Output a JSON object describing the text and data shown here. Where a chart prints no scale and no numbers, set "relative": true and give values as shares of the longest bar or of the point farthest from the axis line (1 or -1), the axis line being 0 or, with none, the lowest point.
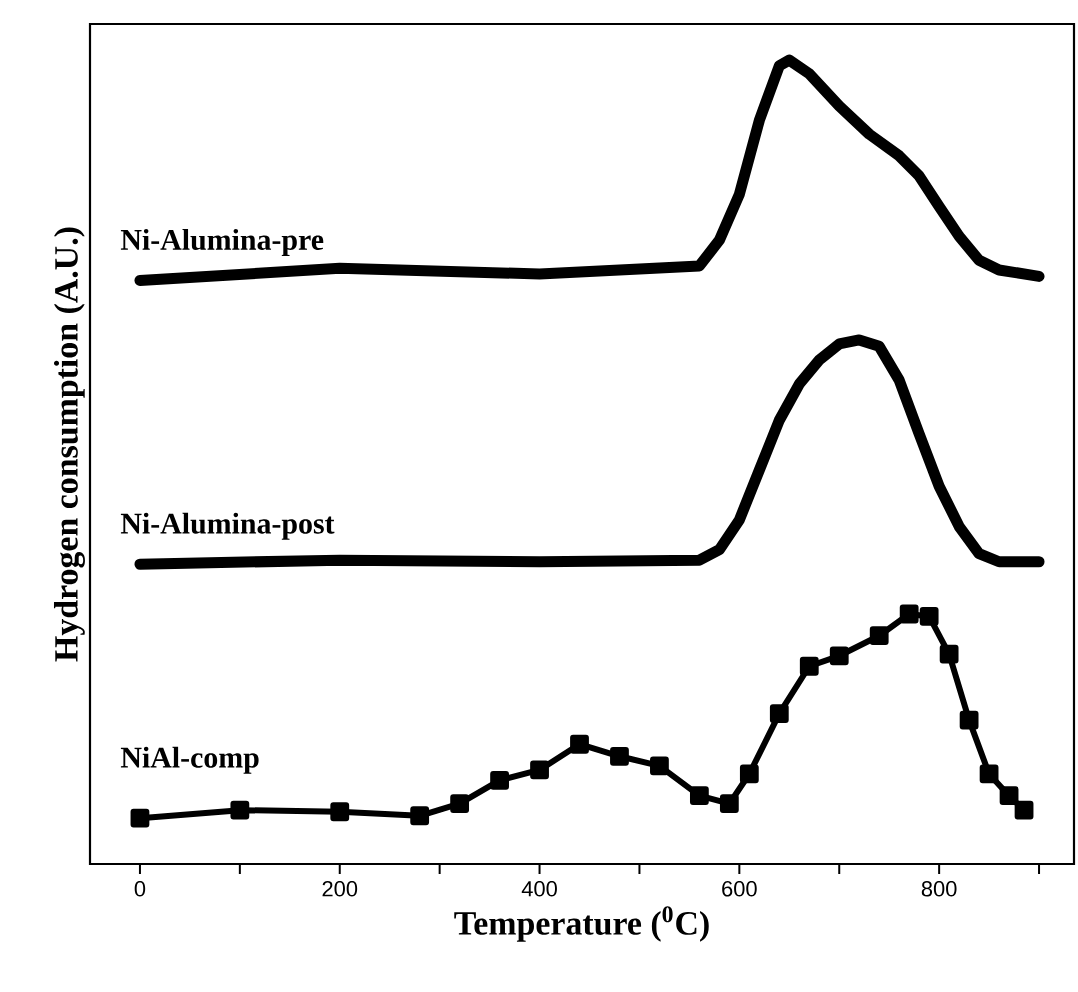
{
  "chart_data": {
    "type": "line",
    "relative": true,
    "xlabel": "Temperature ($^{0}$C)",
    "ylabel": "Hydrogen consumption (A.U.)",
    "xlim": [
      -50,
      935
    ],
    "xticks": [
      0,
      {
        "value": 100,
        "label": null
      },
      200,
      {
        "value": 300,
        "label": null
      },
      400,
      {
        "value": 500,
        "label": null
      },
      600,
      {
        "value": 700,
        "label": null
      },
      800,
      {
        "value": 900,
        "label": null
      }
    ],
    "series": [
      {
        "name": "Ni-Alumina-pre",
        "color": "#000000",
        "x": [
          0,
          200,
          400,
          560,
          580,
          600,
          620,
          640,
          650,
          670,
          700,
          730,
          760,
          780,
          800,
          820,
          840,
          860,
          900
        ],
        "values": [
          0.726,
          0.741,
          0.734,
          0.744,
          0.776,
          0.833,
          0.925,
          0.993,
          1.0,
          0.983,
          0.943,
          0.908,
          0.881,
          0.856,
          0.818,
          0.781,
          0.751,
          0.739,
          0.731
        ]
      },
      {
        "name": "Ni-Alumina-post",
        "color": "#000000",
        "x": [
          0,
          200,
          400,
          560,
          580,
          600,
          620,
          640,
          660,
          680,
          700,
          720,
          740,
          760,
          780,
          800,
          820,
          840,
          860,
          900
        ],
        "values": [
          0.373,
          0.378,
          0.376,
          0.378,
          0.391,
          0.428,
          0.49,
          0.552,
          0.597,
          0.627,
          0.647,
          0.652,
          0.644,
          0.602,
          0.535,
          0.47,
          0.42,
          0.386,
          0.376,
          0.376
        ]
      },
      {
        "name": "NiAl-comp",
        "color": "#000000",
        "marker": "square",
        "x": [
          0,
          100,
          200,
          280,
          320,
          360,
          400,
          440,
          480,
          520,
          560,
          590,
          610,
          640,
          670,
          700,
          740,
          770,
          790,
          810,
          830,
          850,
          870,
          885
        ],
        "values": [
          0.057,
          0.067,
          0.065,
          0.06,
          0.075,
          0.104,
          0.117,
          0.149,
          0.134,
          0.122,
          0.085,
          0.075,
          0.112,
          0.187,
          0.246,
          0.259,
          0.284,
          0.311,
          0.308,
          0.261,
          0.179,
          0.112,
          0.085,
          0.067
        ]
      }
    ]
  }
}
